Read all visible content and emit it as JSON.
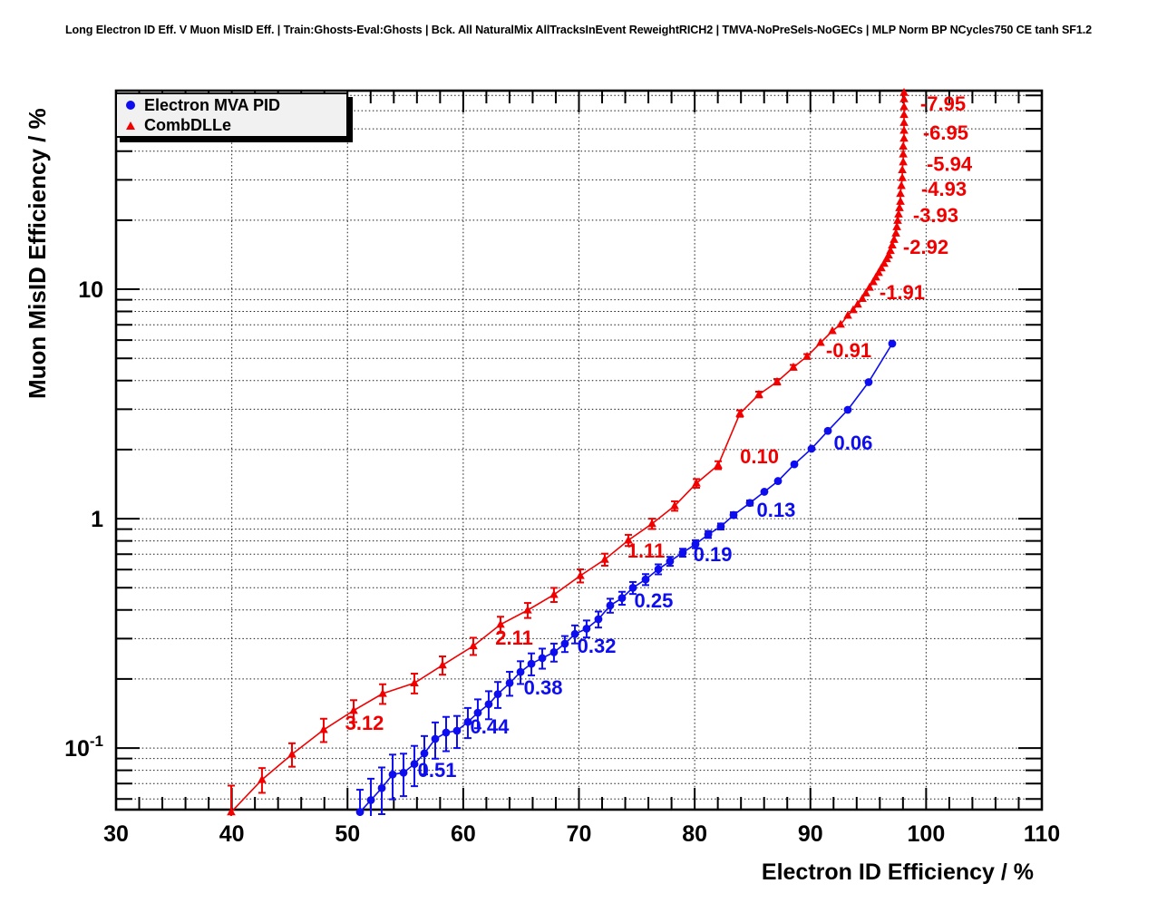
{
  "title": "Long Electron ID Eff. V Muon MisID Eff. | Train:Ghosts-Eval:Ghosts | Bck. All NaturalMix AllTracksInEvent ReweightRICH2 | TMVA-NoPreSels-NoGECs | MLP Norm BP NCycles750 CE tanh SF1.2",
  "colors": {
    "blue": "#0d0df0",
    "red": "#f20000",
    "grid": "#1a1a1a",
    "frame": "#000000"
  },
  "legend": {
    "items": [
      {
        "label": "Electron MVA PID",
        "marker": "circle",
        "color": "#0d0df0"
      },
      {
        "label": "CombDLLe",
        "marker": "triangle",
        "color": "#f20000"
      }
    ]
  },
  "axes": {
    "x": {
      "title": "Electron ID Efficiency / %",
      "min": 30,
      "max": 110,
      "major_tick_step": 10,
      "minor_tick_step": 2,
      "tick_labels": [
        "30",
        "40",
        "50",
        "60",
        "70",
        "80",
        "90",
        "100",
        "110"
      ],
      "tick_values": [
        30,
        40,
        50,
        60,
        70,
        80,
        90,
        100,
        110
      ]
    },
    "y": {
      "title": "Muon MisID Efficiency / %",
      "scale": "log",
      "min": 0.0539,
      "max": 73.4,
      "tick_labels": [
        {
          "base": "10",
          "sup": "",
          "value": 10
        },
        {
          "base": "1",
          "sup": "",
          "value": 1
        },
        {
          "base": "10",
          "sup": "-1",
          "value": 0.1
        }
      ]
    },
    "grid": true
  },
  "chart_data": {
    "type": "line",
    "xlabel": "Electron ID Efficiency / %",
    "ylabel": "Muon MisID Efficiency / %",
    "x_range": [
      30,
      110
    ],
    "y_range": [
      0.0539,
      73.4
    ],
    "y_scale": "log",
    "legend_position": "top-left",
    "series": [
      {
        "name": "Electron MVA PID",
        "color": "#0d0df0",
        "marker": "circle",
        "points": [
          [
            51.08,
            0.0526,
            0.0132
          ],
          [
            52.02,
            0.0593,
            0.0142
          ],
          [
            52.96,
            0.0669,
            0.0154
          ],
          [
            53.9,
            0.0767,
            0.0169
          ],
          [
            54.84,
            0.0781,
            0.0164
          ],
          [
            55.78,
            0.0852,
            0.017
          ],
          [
            56.64,
            0.0948,
            0.018
          ],
          [
            57.58,
            0.1096,
            0.0197
          ],
          [
            58.52,
            0.1168,
            0.0199
          ],
          [
            59.46,
            0.119,
            0.019
          ],
          [
            60.4,
            0.13,
            0.0195
          ],
          [
            61.26,
            0.1425,
            0.0205
          ],
          [
            62.2,
            0.1552,
            0.0217
          ],
          [
            62.99,
            0.1718,
            0.0223
          ],
          [
            64.01,
            0.192,
            0.023
          ],
          [
            64.95,
            0.2146,
            0.0244
          ],
          [
            65.89,
            0.233,
            0.0256
          ],
          [
            66.83,
            0.2465,
            0.0247
          ],
          [
            67.84,
            0.2617,
            0.0236
          ],
          [
            68.78,
            0.2849,
            0.0228
          ],
          [
            69.65,
            0.3141,
            0.0283
          ],
          [
            70.66,
            0.3316,
            0.0282
          ],
          [
            71.68,
            0.3644,
            0.0292
          ],
          [
            72.7,
            0.4183,
            0.0293
          ],
          [
            73.72,
            0.4506,
            0.0293
          ],
          [
            74.66,
            0.4995,
            0.03
          ],
          [
            75.76,
            0.5431,
            0.0299
          ],
          [
            76.86,
            0.6019,
            0.0301
          ],
          [
            77.87,
            0.652,
            0.0293
          ],
          [
            78.97,
            0.7107,
            0.0284
          ],
          [
            80.07,
            0.7742,
            0.031
          ],
          [
            81.17,
            0.8536,
            0.0299
          ],
          [
            82.26,
            0.9246,
            0.0277
          ],
          [
            83.36,
            1.0371,
            0.029
          ],
          [
            84.77,
            1.1704,
            0.0293
          ],
          [
            86.02,
            1.3095,
            0.0288
          ],
          [
            87.2,
            1.4586,
            0.0292
          ],
          [
            88.61,
            1.7256,
            0.031
          ],
          [
            90.1,
            2.0173,
            0.0303
          ],
          [
            91.51,
            2.413,
            0.029
          ],
          [
            93.23,
            2.983,
            0.0328
          ],
          [
            95.03,
            3.9367,
            0.0354
          ],
          [
            97.07,
            5.7954,
            0.0406
          ]
        ],
        "point_labels": [
          {
            "text": "0.51",
            "x": 57.74,
            "y": 0.0804
          },
          {
            "text": "0.44",
            "x": 62.28,
            "y": 0.1245
          },
          {
            "text": "0.38",
            "x": 66.91,
            "y": 0.184
          },
          {
            "text": "0.32",
            "x": 71.53,
            "y": 0.2798
          },
          {
            "text": "0.25",
            "x": 76.46,
            "y": 0.4409
          },
          {
            "text": "0.19",
            "x": 81.56,
            "y": 0.7012
          },
          {
            "text": "0.13",
            "x": 87.04,
            "y": 1.095
          },
          {
            "text": "0.06",
            "x": 93.7,
            "y": 2.148
          }
        ]
      },
      {
        "name": "CombDLLe",
        "color": "#f20000",
        "marker": "triangle",
        "points": [
          [
            39.95,
            0.0526,
            0.016
          ],
          [
            42.61,
            0.0728,
            0.009
          ],
          [
            45.2,
            0.0939,
            0.011
          ],
          [
            47.94,
            0.1202,
            0.014
          ],
          [
            50.53,
            0.1457,
            0.016
          ],
          [
            53.04,
            0.1727,
            0.017
          ],
          [
            55.78,
            0.192,
            0.019
          ],
          [
            58.21,
            0.2298,
            0.021
          ],
          [
            60.87,
            0.2785,
            0.024
          ],
          [
            63.22,
            0.3456,
            0.028
          ],
          [
            65.57,
            0.399,
            0.03
          ],
          [
            67.84,
            0.4662,
            0.033
          ],
          [
            70.12,
            0.5639,
            0.037
          ],
          [
            72.23,
            0.6637,
            0.04
          ],
          [
            74.27,
            0.8051,
            0.045
          ],
          [
            76.31,
            0.9504,
            0.049
          ],
          [
            78.27,
            1.1362,
            0.054
          ],
          [
            80.15,
            1.4258,
            0.062
          ],
          [
            82.03,
            1.7113,
            0.068
          ],
          [
            83.91,
            2.8727,
            0.092
          ],
          [
            85.55,
            3.4772,
            0.1
          ],
          [
            87.12,
            3.9511,
            0.11
          ],
          [
            88.53,
            4.569,
            0.11
          ],
          [
            89.71,
            5.095,
            0.12
          ],
          [
            90.88,
            5.85,
            0.13
          ],
          [
            91.9,
            6.585,
            0.13
          ],
          [
            92.61,
            7.03,
            0.13
          ],
          [
            93.23,
            7.686,
            0.12
          ],
          [
            93.7,
            8.131,
            0.11
          ],
          [
            94.09,
            8.601,
            0.11
          ],
          [
            94.49,
            9.099,
            0.1
          ],
          [
            94.8,
            9.626,
            0.1
          ],
          [
            95.11,
            10.18,
            0.1
          ],
          [
            95.43,
            10.77,
            0.09
          ],
          [
            95.66,
            11.28,
            0.09
          ],
          [
            95.9,
            11.81,
            0.09
          ],
          [
            96.13,
            12.37,
            0.08
          ],
          [
            96.37,
            12.95,
            0.08
          ],
          [
            96.6,
            13.56,
            0.08
          ],
          [
            96.76,
            14.07,
            0.07
          ],
          [
            96.92,
            14.73,
            0.07
          ],
          [
            97.07,
            15.57,
            0.07
          ],
          [
            97.23,
            16.46,
            0.06
          ],
          [
            97.39,
            17.54,
            0.06
          ],
          [
            97.47,
            18.7,
            0.06
          ],
          [
            97.54,
            19.93,
            0.05
          ],
          [
            97.62,
            21.24,
            0.05
          ],
          [
            97.7,
            22.64,
            0.05
          ],
          [
            97.78,
            24.13,
            0.05
          ],
          [
            97.78,
            26.12,
            0.04
          ],
          [
            97.86,
            28.27,
            0.04
          ],
          [
            97.94,
            30.6,
            0.04
          ],
          [
            97.94,
            33.12,
            0.03
          ],
          [
            98.02,
            35.85,
            0.03
          ],
          [
            98.02,
            38.81,
            0.03
          ],
          [
            98.02,
            42.0,
            0.03
          ],
          [
            98.09,
            45.47,
            0.02
          ],
          [
            98.09,
            49.21,
            0.02
          ],
          [
            98.09,
            53.27,
            0.02
          ],
          [
            98.09,
            57.66,
            0.02
          ],
          [
            98.09,
            62.41,
            0.02
          ],
          [
            98.09,
            67.56,
            0.01
          ],
          [
            98.09,
            72.0,
            0.01
          ]
        ],
        "point_labels": [
          {
            "text": "3.12",
            "x": 51.47,
            "y": 0.129
          },
          {
            "text": "2.11",
            "x": 64.4,
            "y": 0.3035
          },
          {
            "text": "1.11",
            "x": 75.8,
            "y": 0.727
          },
          {
            "text": "0.10",
            "x": 85.6,
            "y": 1.874
          },
          {
            "text": "-0.91",
            "x": 93.31,
            "y": 5.43
          },
          {
            "text": "-1.91",
            "x": 97.93,
            "y": 9.73
          },
          {
            "text": "-2.92",
            "x": 99.97,
            "y": 15.33
          },
          {
            "text": "-3.93",
            "x": 100.83,
            "y": 21.08
          },
          {
            "text": "-4.93",
            "x": 101.54,
            "y": 27.46
          },
          {
            "text": "-5.94",
            "x": 102.01,
            "y": 35.33
          },
          {
            "text": "-6.95",
            "x": 101.69,
            "y": 48.25
          },
          {
            "text": "-7.95",
            "x": 101.46,
            "y": 64.57
          }
        ]
      }
    ]
  }
}
